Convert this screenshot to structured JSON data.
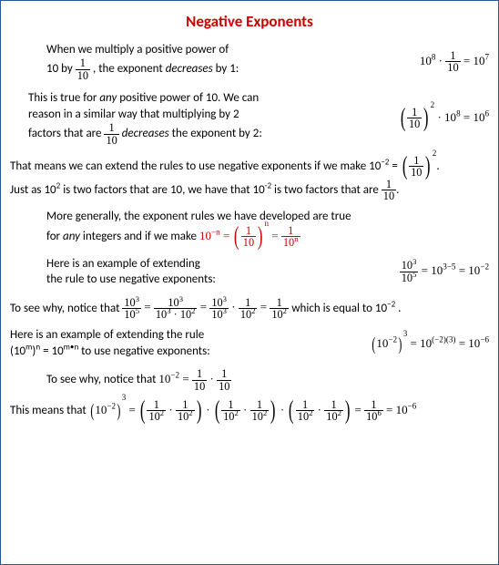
{
  "title": "Negative Exponents",
  "p1a": "When we multiply a positive power of",
  "p1b_pre": "10 by ",
  "p1b_post": " , the exponent ",
  "p1b_dec": "decreases",
  "p1b_end": " by 1:",
  "eq1_a": "10",
  "eq1_ae": "8",
  "eq1_dot": " · ",
  "eq1_fn": "1",
  "eq1_fd": "10",
  "eq1_eq": " = 10",
  "eq1_re": "7",
  "p2a": "This is true for ",
  "p2any": "any",
  "p2b": " positive power of 10. We can",
  "p2c": "reason in a similar way that multiplying by 2",
  "p2d_pre": "factors that are ",
  "p2d_dec": "  decreases",
  "p2d_post": " the exponent by 2:",
  "eq2_fn": "1",
  "eq2_fd": "10",
  "eq2_e1": "2",
  "eq2_mid": " · 10",
  "eq2_e2": "8",
  "eq2_eq": " = 10",
  "eq2_e3": "6",
  "p3a": "That means we can extend the rules to use negative exponents if we make  10",
  "p3a_e": "−2",
  "p3a_eq": " = ",
  "p3a_fn": "1",
  "p3a_fd": "10",
  "p3a_oe": "2",
  "p3a_dot": ".",
  "p3b_a": "Just as 10",
  "p3b_e1": "2",
  "p3b_b": " is two factors that are 10, we have that 10",
  "p3b_e2": "-2",
  "p3b_c": " is two factors that are ",
  "p3b_fn": "1",
  "p3b_fd": "10",
  "p3b_dot": ".",
  "p4a": "More generally, the exponent rules we have developed are true",
  "p4b": "for ",
  "p4any": "any",
  "p4c": " integers  and  if we make   ",
  "eq3_b": "10",
  "eq3_be": "−n",
  "eq3_eq1": " = ",
  "eq3_fn": "1",
  "eq3_fd": "10",
  "eq3_oe": "n",
  "eq3_eq2": " = ",
  "eq3_f2n": "1",
  "eq3_f2d": "10",
  "eq3_f2e": "n",
  "p5a": "Here is an example of extending",
  "p5b": "the rule  to use negative exponents:",
  "eq4_fn": "10",
  "eq4_fne": "3",
  "eq4_fd": "10",
  "eq4_fde": "5",
  "eq4_eq1": " = 10",
  "eq4_e1": "3−5",
  "eq4_eq2": " = 10",
  "eq4_e2": "−2",
  "p6a": "To see why, notice that  ",
  "eq5_a_n": "10",
  "eq5_a_ne": "3",
  "eq5_a_d": "10",
  "eq5_a_de": "5",
  "eq5_eq": " = ",
  "eq5_b_n": "10",
  "eq5_b_ne": "3",
  "eq5_b_d1": "10",
  "eq5_b_de1": "3",
  "eq5_b_dot": " · ",
  "eq5_b_d2": "10",
  "eq5_b_de2": "2",
  "eq5_c_n": "10",
  "eq5_c_ne": "3",
  "eq5_c_d": "10",
  "eq5_c_de": "3",
  "eq5_dot": " · ",
  "eq5_d_n": "1",
  "eq5_d_d": "10",
  "eq5_d_de": "2",
  "eq5_e_n": "1",
  "eq5_e_d": "10",
  "eq5_e_de": "2",
  "p6b": "   which is equal to 10",
  "p6be": "−2",
  "p6c": " .",
  "p7a": "Here is an example of extending the rule",
  "p7b_a": "(10",
  "p7b_e1": "m",
  "p7b_b": ")",
  "p7b_e2": "n",
  "p7b_c": " = 10",
  "p7b_e3": "m•n",
  "p7b_d": " to use negative exponents:",
  "eq6_a": "10",
  "eq6_ae": "−2",
  "eq6_oe": "3",
  "eq6_eq1": " = 10",
  "eq6_e1": "(−2)(3)",
  "eq6_eq2": " = 10",
  "eq6_e2": "−6",
  "p8a": "To see why, notice that   ",
  "eq7_b": "10",
  "eq7_be": "−2",
  "eq7_eq": " = ",
  "eq7_fn": "1",
  "eq7_fd": "10",
  "eq7_dot": " · ",
  "p9a": "This means that   ",
  "eq8_b": "10",
  "eq8_be": "−2",
  "eq8_oe": "3",
  "eq8_eq": " = ",
  "eq8_fn": "1",
  "eq8_fd": "10",
  "eq8_fde": "2",
  "eq8_dot": " · ",
  "eq8_eq2": " = ",
  "eq8_rn": "1",
  "eq8_rd": "10",
  "eq8_rde": "6",
  "eq8_eq3": " = 10",
  "eq8_re": "−6"
}
